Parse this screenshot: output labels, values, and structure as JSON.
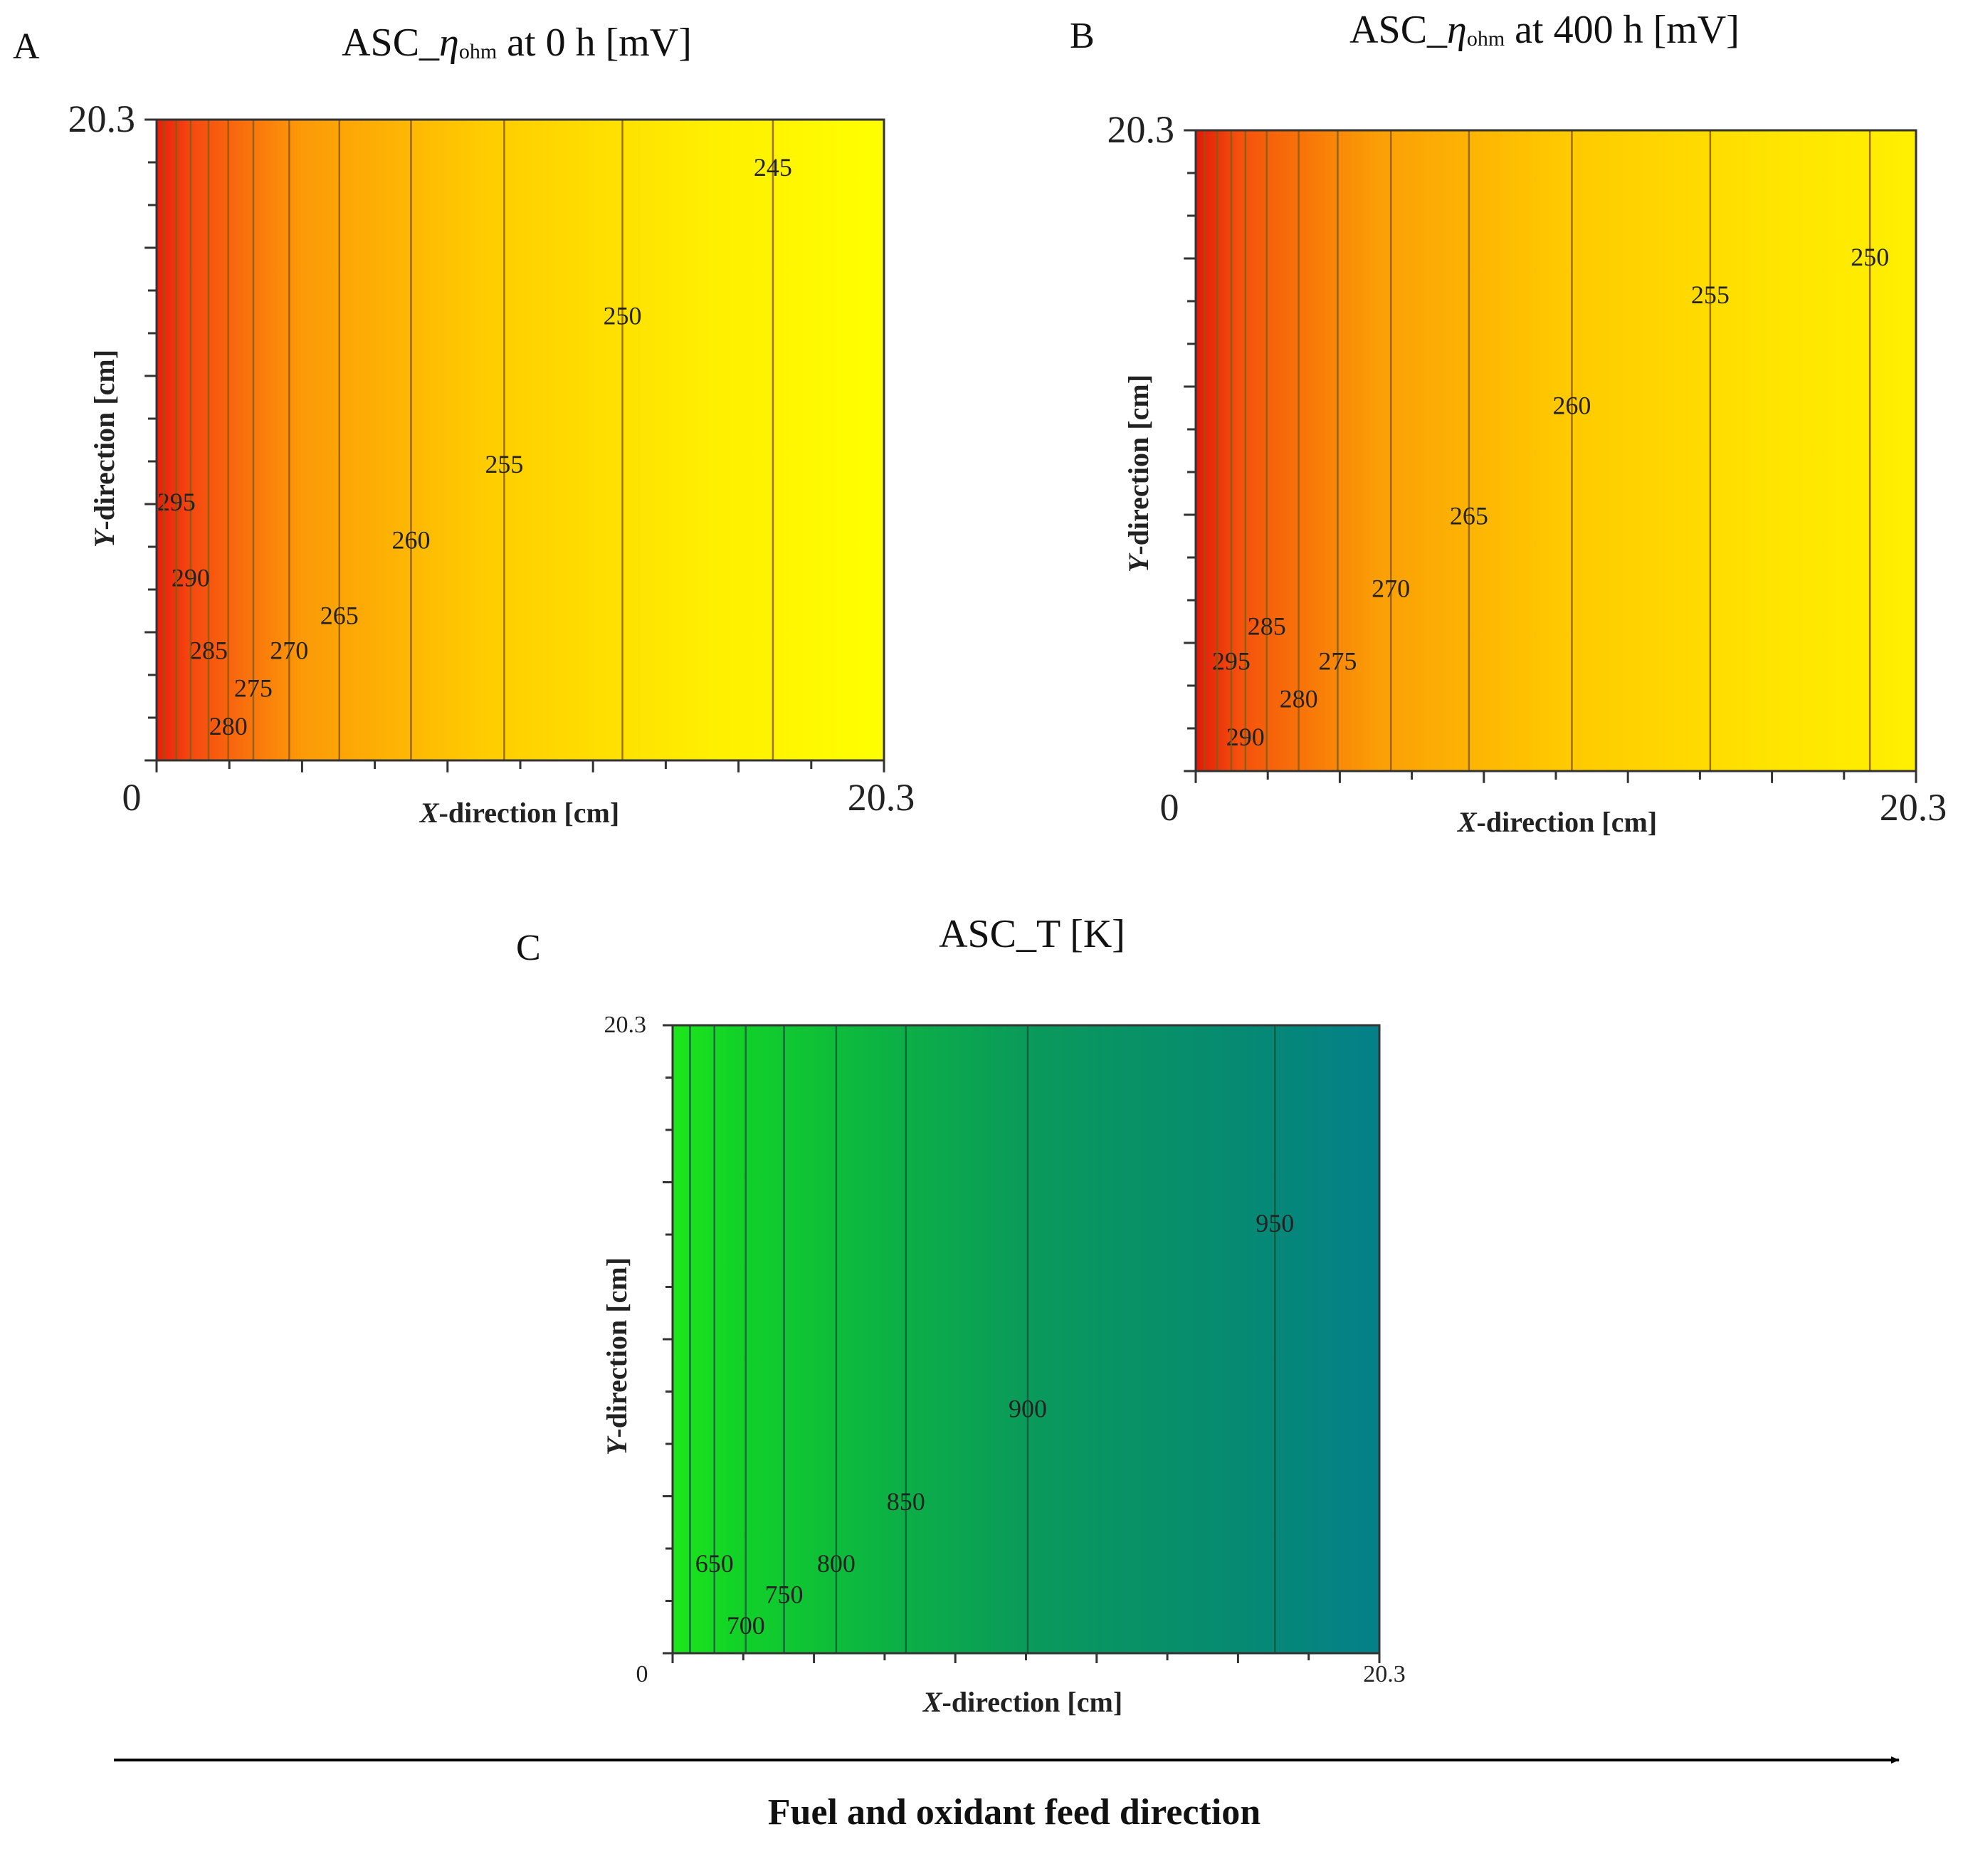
{
  "chart_data": [
    {
      "panel": "A",
      "type": "heatmap",
      "subtype": "contour",
      "title_prefix": "ASC_",
      "title_symbol": "η",
      "title_subscript": "ohm",
      "title_suffix": " at 0 h [mV]",
      "xlabel_prefix": "X",
      "xlabel_rest": "-direction [cm]",
      "ylabel_prefix": "Y",
      "ylabel_rest": "-direction  [cm]",
      "x_min_label": "0",
      "x_max_label": "20.3",
      "y_max_label": "20.3",
      "xlim": [
        0,
        20.3
      ],
      "ylim": [
        0,
        20.3
      ],
      "color_low": "#ffff00",
      "color_high": "#e02010",
      "value_range": [
        240,
        300
      ],
      "contours": [
        {
          "level": 245,
          "x": 17.2,
          "label": "245",
          "label_y": 18.8
        },
        {
          "level": 250,
          "x": 13.0,
          "label": "250",
          "label_y": 14.1
        },
        {
          "level": 255,
          "x": 9.7,
          "label": "255",
          "label_y": 9.4
        },
        {
          "level": 260,
          "x": 7.1,
          "label": "260",
          "label_y": 7.0
        },
        {
          "level": 265,
          "x": 5.1,
          "label": "265",
          "label_y": 4.6
        },
        {
          "level": 270,
          "x": 3.7,
          "label": "270",
          "label_y": 3.5
        },
        {
          "level": 275,
          "x": 2.7,
          "label": "275",
          "label_y": 2.3
        },
        {
          "level": 280,
          "x": 2.0,
          "label": "280",
          "label_y": 1.1
        },
        {
          "level": 285,
          "x": 1.45,
          "label": "285",
          "label_y": 3.5
        },
        {
          "level": 290,
          "x": 0.95,
          "label": "290",
          "label_y": 5.8
        },
        {
          "level": 295,
          "x": 0.55,
          "label": "295",
          "label_y": 8.2
        },
        {
          "level": 300,
          "x": 0.2,
          "label": "",
          "label_y": 0
        }
      ]
    },
    {
      "panel": "B",
      "type": "heatmap",
      "subtype": "contour",
      "title_prefix": "ASC_",
      "title_symbol": "η",
      "title_subscript": "ohm",
      "title_suffix": " at 400 h [mV]",
      "xlabel_prefix": "X",
      "xlabel_rest": "-direction [cm]",
      "ylabel_prefix": "Y",
      "ylabel_rest": "-direction  [cm]",
      "x_min_label": "0",
      "x_max_label": "20.3",
      "y_max_label": "20.3",
      "xlim": [
        0,
        20.3
      ],
      "ylim": [
        0,
        20.3
      ],
      "color_low": "#ffee00",
      "color_high": "#e02010",
      "value_range": [
        245,
        305
      ],
      "contours": [
        {
          "level": 250,
          "x": 19.0,
          "label": "250",
          "label_y": 16.3
        },
        {
          "level": 255,
          "x": 14.5,
          "label": "255",
          "label_y": 15.1
        },
        {
          "level": 260,
          "x": 10.6,
          "label": "260",
          "label_y": 11.6
        },
        {
          "level": 265,
          "x": 7.7,
          "label": "265",
          "label_y": 8.1
        },
        {
          "level": 270,
          "x": 5.5,
          "label": "270",
          "label_y": 5.8
        },
        {
          "level": 275,
          "x": 4.0,
          "label": "275",
          "label_y": 3.5
        },
        {
          "level": 280,
          "x": 2.9,
          "label": "280",
          "label_y": 2.3
        },
        {
          "level": 285,
          "x": 2.0,
          "label": "285",
          "label_y": 4.6
        },
        {
          "level": 290,
          "x": 1.4,
          "label": "290",
          "label_y": 1.1
        },
        {
          "level": 295,
          "x": 1.0,
          "label": "295",
          "label_y": 3.5
        },
        {
          "level": 300,
          "x": 0.6,
          "label": "",
          "label_y": 0
        },
        {
          "level": 305,
          "x": 0.25,
          "label": "",
          "label_y": 0
        }
      ]
    },
    {
      "panel": "C",
      "type": "heatmap",
      "subtype": "contour",
      "title": "ASC_T [K]",
      "xlabel_prefix": "X",
      "xlabel_rest": "-direction [cm]",
      "ylabel_prefix": "Y",
      "ylabel_rest": "-direction [cm]",
      "x_min_label": "0",
      "x_max_label": "20.3",
      "y_max_label": "20.3",
      "xlim": [
        0,
        20.3
      ],
      "ylim": [
        0,
        20.3
      ],
      "color_low": "#10e020",
      "color_high": "#00808c",
      "value_range": [
        600,
        1000
      ],
      "contours": [
        {
          "level": 650,
          "x": 1.2,
          "label": "650",
          "label_y": 2.9
        },
        {
          "level": 700,
          "x": 2.1,
          "label": "700",
          "label_y": 0.9
        },
        {
          "level": 750,
          "x": 3.2,
          "label": "750",
          "label_y": 1.9
        },
        {
          "level": 800,
          "x": 4.7,
          "label": "800",
          "label_y": 2.9
        },
        {
          "level": 850,
          "x": 6.7,
          "label": "850",
          "label_y": 4.9
        },
        {
          "level": 900,
          "x": 10.2,
          "label": "900",
          "label_y": 7.9
        },
        {
          "level": 950,
          "x": 17.3,
          "label": "950",
          "label_y": 13.9
        },
        {
          "level": 620,
          "x": 0.5,
          "label": "",
          "label_y": 0
        }
      ]
    }
  ],
  "feed_direction": {
    "label": "Fuel and oxidant feed direction"
  }
}
